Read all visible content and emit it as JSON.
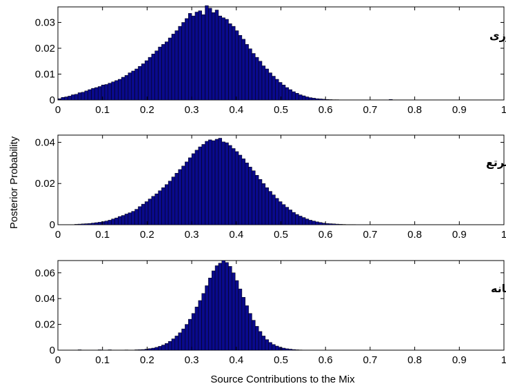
{
  "figure": {
    "ylabel": "Posterior Probability",
    "xlabel": "Source Contributions to the Mix"
  },
  "colors": {
    "bar_fill": "#0a0a8c",
    "bar_edge": "#000000",
    "background": "#ffffff"
  },
  "chart_data": [
    {
      "type": "bar",
      "title": "کشاورزی",
      "xlim": [
        0,
        1
      ],
      "ylim": [
        0,
        0.036
      ],
      "xticks": [
        "0",
        "0.1",
        "0.2",
        "0.3",
        "0.4",
        "0.5",
        "0.6",
        "0.7",
        "0.8",
        "0.9",
        "1"
      ],
      "yticks": [
        {
          "value": 0,
          "label": "0"
        },
        {
          "value": 0.01,
          "label": "0.01"
        },
        {
          "value": 0.02,
          "label": "0.02"
        },
        {
          "value": 0.03,
          "label": "0.03"
        }
      ],
      "bin_width": 0.0075,
      "bins": [
        [
          0,
          0.0005
        ],
        [
          0.0075,
          0.001
        ],
        [
          0.015,
          0.0012
        ],
        [
          0.0225,
          0.0015
        ],
        [
          0.03,
          0.002
        ],
        [
          0.0375,
          0.0022
        ],
        [
          0.045,
          0.0028
        ],
        [
          0.0525,
          0.003
        ],
        [
          0.06,
          0.0035
        ],
        [
          0.0675,
          0.004
        ],
        [
          0.075,
          0.0045
        ],
        [
          0.0825,
          0.0048
        ],
        [
          0.09,
          0.0052
        ],
        [
          0.0975,
          0.0058
        ],
        [
          0.105,
          0.006
        ],
        [
          0.1125,
          0.0065
        ],
        [
          0.12,
          0.007
        ],
        [
          0.1275,
          0.0075
        ],
        [
          0.135,
          0.008
        ],
        [
          0.1425,
          0.0088
        ],
        [
          0.15,
          0.0095
        ],
        [
          0.1575,
          0.0105
        ],
        [
          0.165,
          0.0112
        ],
        [
          0.1725,
          0.012
        ],
        [
          0.18,
          0.013
        ],
        [
          0.1875,
          0.014
        ],
        [
          0.195,
          0.0152
        ],
        [
          0.2025,
          0.0165
        ],
        [
          0.21,
          0.0178
        ],
        [
          0.2175,
          0.019
        ],
        [
          0.225,
          0.0205
        ],
        [
          0.2325,
          0.0215
        ],
        [
          0.24,
          0.0225
        ],
        [
          0.2475,
          0.024
        ],
        [
          0.255,
          0.0255
        ],
        [
          0.2625,
          0.0268
        ],
        [
          0.27,
          0.0285
        ],
        [
          0.2775,
          0.03
        ],
        [
          0.285,
          0.0315
        ],
        [
          0.2925,
          0.0335
        ],
        [
          0.3,
          0.0325
        ],
        [
          0.3075,
          0.034
        ],
        [
          0.315,
          0.0345
        ],
        [
          0.3225,
          0.033
        ],
        [
          0.33,
          0.0365
        ],
        [
          0.3375,
          0.0355
        ],
        [
          0.345,
          0.0338
        ],
        [
          0.3525,
          0.0348
        ],
        [
          0.36,
          0.0325
        ],
        [
          0.3675,
          0.0318
        ],
        [
          0.375,
          0.0312
        ],
        [
          0.3825,
          0.0295
        ],
        [
          0.39,
          0.0285
        ],
        [
          0.3975,
          0.0268
        ],
        [
          0.405,
          0.025
        ],
        [
          0.4125,
          0.0235
        ],
        [
          0.42,
          0.0215
        ],
        [
          0.4275,
          0.0198
        ],
        [
          0.435,
          0.018
        ],
        [
          0.4425,
          0.0165
        ],
        [
          0.45,
          0.015
        ],
        [
          0.4575,
          0.0132
        ],
        [
          0.465,
          0.012
        ],
        [
          0.4725,
          0.0105
        ],
        [
          0.48,
          0.0092
        ],
        [
          0.4875,
          0.008
        ],
        [
          0.495,
          0.0068
        ],
        [
          0.5025,
          0.0058
        ],
        [
          0.51,
          0.0048
        ],
        [
          0.5175,
          0.004
        ],
        [
          0.525,
          0.0032
        ],
        [
          0.5325,
          0.0026
        ],
        [
          0.54,
          0.002
        ],
        [
          0.5475,
          0.0016
        ],
        [
          0.555,
          0.0012
        ],
        [
          0.5625,
          0.0009
        ],
        [
          0.57,
          0.0007
        ],
        [
          0.5775,
          0.0005
        ],
        [
          0.585,
          0.0004
        ],
        [
          0.5925,
          0.0003
        ],
        [
          0.6,
          0.0002
        ],
        [
          0.6075,
          0.00015
        ],
        [
          0.615,
          0.0001
        ],
        [
          0.6225,
          0.0001
        ],
        [
          0.7425,
          0.0002
        ]
      ]
    },
    {
      "type": "bar",
      "title": "مرتع",
      "xlim": [
        0,
        1
      ],
      "ylim": [
        0,
        0.0435
      ],
      "xticks": [
        "0",
        "0.1",
        "0.2",
        "0.3",
        "0.4",
        "0.5",
        "0.6",
        "0.7",
        "0.8",
        "0.9",
        "1"
      ],
      "yticks": [
        {
          "value": 0,
          "label": "0"
        },
        {
          "value": 0.02,
          "label": "0.02"
        },
        {
          "value": 0.04,
          "label": "0.04"
        }
      ],
      "bin_width": 0.0075,
      "bins": [
        [
          0.0375,
          0.0002
        ],
        [
          0.045,
          0.0003
        ],
        [
          0.0525,
          0.0004
        ],
        [
          0.06,
          0.0005
        ],
        [
          0.0675,
          0.0006
        ],
        [
          0.075,
          0.0008
        ],
        [
          0.0825,
          0.001
        ],
        [
          0.09,
          0.0012
        ],
        [
          0.0975,
          0.0015
        ],
        [
          0.105,
          0.0018
        ],
        [
          0.1125,
          0.0022
        ],
        [
          0.12,
          0.0028
        ],
        [
          0.1275,
          0.0033
        ],
        [
          0.135,
          0.004
        ],
        [
          0.1425,
          0.0045
        ],
        [
          0.15,
          0.0052
        ],
        [
          0.1575,
          0.0058
        ],
        [
          0.165,
          0.0065
        ],
        [
          0.1725,
          0.0075
        ],
        [
          0.18,
          0.0088
        ],
        [
          0.1875,
          0.01
        ],
        [
          0.195,
          0.0112
        ],
        [
          0.2025,
          0.0125
        ],
        [
          0.21,
          0.0138
        ],
        [
          0.2175,
          0.015
        ],
        [
          0.225,
          0.0165
        ],
        [
          0.2325,
          0.018
        ],
        [
          0.24,
          0.0195
        ],
        [
          0.2475,
          0.0212
        ],
        [
          0.255,
          0.0232
        ],
        [
          0.2625,
          0.025
        ],
        [
          0.27,
          0.0268
        ],
        [
          0.2775,
          0.0285
        ],
        [
          0.285,
          0.0305
        ],
        [
          0.2925,
          0.0325
        ],
        [
          0.3,
          0.0345
        ],
        [
          0.3075,
          0.0362
        ],
        [
          0.315,
          0.0378
        ],
        [
          0.3225,
          0.039
        ],
        [
          0.33,
          0.0405
        ],
        [
          0.3375,
          0.0412
        ],
        [
          0.345,
          0.0408
        ],
        [
          0.3525,
          0.0415
        ],
        [
          0.36,
          0.042
        ],
        [
          0.3675,
          0.0402
        ],
        [
          0.375,
          0.0398
        ],
        [
          0.3825,
          0.0385
        ],
        [
          0.39,
          0.037
        ],
        [
          0.3975,
          0.0355
        ],
        [
          0.405,
          0.0338
        ],
        [
          0.4125,
          0.032
        ],
        [
          0.42,
          0.03
        ],
        [
          0.4275,
          0.028
        ],
        [
          0.435,
          0.0262
        ],
        [
          0.4425,
          0.024
        ],
        [
          0.45,
          0.022
        ],
        [
          0.4575,
          0.02
        ],
        [
          0.465,
          0.018
        ],
        [
          0.4725,
          0.0162
        ],
        [
          0.48,
          0.0145
        ],
        [
          0.4875,
          0.0128
        ],
        [
          0.495,
          0.0112
        ],
        [
          0.5025,
          0.0098
        ],
        [
          0.51,
          0.0085
        ],
        [
          0.5175,
          0.0072
        ],
        [
          0.525,
          0.006
        ],
        [
          0.5325,
          0.005
        ],
        [
          0.54,
          0.0042
        ],
        [
          0.5475,
          0.0035
        ],
        [
          0.555,
          0.0028
        ],
        [
          0.5625,
          0.0022
        ],
        [
          0.57,
          0.0018
        ],
        [
          0.5775,
          0.0014
        ],
        [
          0.585,
          0.0011
        ],
        [
          0.5925,
          0.0008
        ],
        [
          0.6,
          0.0006
        ],
        [
          0.6075,
          0.0005
        ],
        [
          0.615,
          0.0004
        ],
        [
          0.6225,
          0.0003
        ],
        [
          0.63,
          0.0002
        ],
        [
          0.6375,
          0.00015
        ],
        [
          0.645,
          0.0001
        ],
        [
          0.6525,
          0.0001
        ],
        [
          0.66,
          0.0001
        ],
        [
          0.6675,
          5e-05
        ],
        [
          0.675,
          5e-05
        ],
        [
          0.6825,
          5e-05
        ]
      ]
    },
    {
      "type": "bar",
      "title": "کانال رودخانه",
      "xlim": [
        0,
        1
      ],
      "ylim": [
        0,
        0.0695
      ],
      "xticks": [
        "0",
        "0.1",
        "0.2",
        "0.3",
        "0.4",
        "0.5",
        "0.6",
        "0.7",
        "0.8",
        "0.9",
        "1"
      ],
      "yticks": [
        {
          "value": 0,
          "label": "0"
        },
        {
          "value": 0.02,
          "label": "0.02"
        },
        {
          "value": 0.04,
          "label": "0.04"
        },
        {
          "value": 0.06,
          "label": "0.06"
        }
      ],
      "bin_width": 0.0075,
      "bins": [
        [
          0.045,
          0.0003
        ],
        [
          0.09,
          0.0003
        ],
        [
          0.1125,
          0.0003
        ],
        [
          0.15,
          0.0002
        ],
        [
          0.1725,
          0.0003
        ],
        [
          0.18,
          0.0004
        ],
        [
          0.1875,
          0.0005
        ],
        [
          0.195,
          0.0008
        ],
        [
          0.2025,
          0.0012
        ],
        [
          0.21,
          0.0016
        ],
        [
          0.2175,
          0.0022
        ],
        [
          0.225,
          0.003
        ],
        [
          0.2325,
          0.004
        ],
        [
          0.24,
          0.0052
        ],
        [
          0.2475,
          0.0068
        ],
        [
          0.255,
          0.0088
        ],
        [
          0.2625,
          0.011
        ],
        [
          0.27,
          0.0135
        ],
        [
          0.2775,
          0.0165
        ],
        [
          0.285,
          0.02
        ],
        [
          0.2925,
          0.024
        ],
        [
          0.3,
          0.0285
        ],
        [
          0.3075,
          0.0335
        ],
        [
          0.315,
          0.0385
        ],
        [
          0.3225,
          0.044
        ],
        [
          0.33,
          0.05
        ],
        [
          0.3375,
          0.056
        ],
        [
          0.345,
          0.0615
        ],
        [
          0.3525,
          0.0655
        ],
        [
          0.36,
          0.0675
        ],
        [
          0.3675,
          0.0695
        ],
        [
          0.375,
          0.068
        ],
        [
          0.3825,
          0.065
        ],
        [
          0.39,
          0.06
        ],
        [
          0.3975,
          0.054
        ],
        [
          0.405,
          0.0475
        ],
        [
          0.4125,
          0.041
        ],
        [
          0.42,
          0.0345
        ],
        [
          0.4275,
          0.0285
        ],
        [
          0.435,
          0.0232
        ],
        [
          0.4425,
          0.0185
        ],
        [
          0.45,
          0.0145
        ],
        [
          0.4575,
          0.011
        ],
        [
          0.465,
          0.0082
        ],
        [
          0.4725,
          0.006
        ],
        [
          0.48,
          0.0044
        ],
        [
          0.4875,
          0.0032
        ],
        [
          0.495,
          0.0023
        ],
        [
          0.5025,
          0.0016
        ],
        [
          0.51,
          0.0011
        ],
        [
          0.5175,
          0.0008
        ],
        [
          0.525,
          0.0005
        ],
        [
          0.5325,
          0.0003
        ],
        [
          0.54,
          0.0002
        ],
        [
          0.5475,
          0.0001
        ]
      ]
    }
  ]
}
